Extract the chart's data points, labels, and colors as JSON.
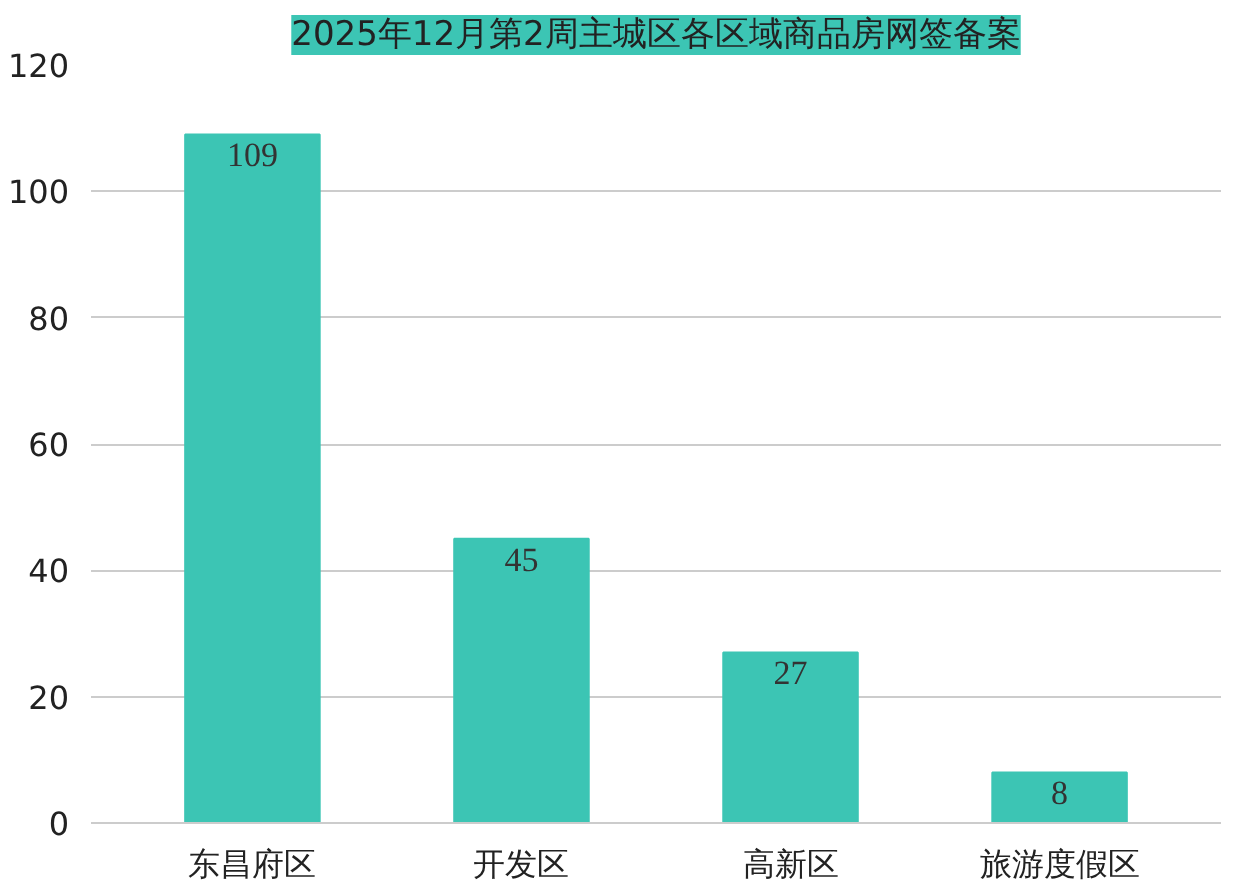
{
  "chart_data": {
    "type": "bar",
    "title": "2025年12月第2周主城区各区域商品房网签备案",
    "categories": [
      "东昌府区",
      "开发区",
      "高新区",
      "旅游度假区"
    ],
    "values": [
      109,
      45,
      27,
      8
    ],
    "color": "#3cc5b4",
    "ylim": [
      0,
      120
    ],
    "yticks": [
      0,
      20,
      40,
      60,
      80,
      100,
      120
    ],
    "grid": "y",
    "data_labels": true
  }
}
